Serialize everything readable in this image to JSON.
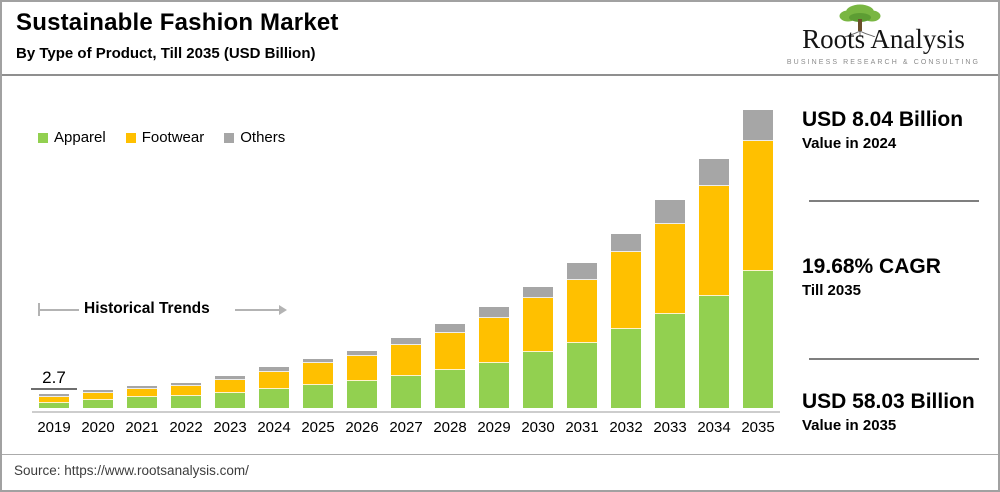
{
  "header": {
    "title": "Sustainable Fashion Market",
    "subtitle": "By Type of Product, Till 2035 (USD Billion)"
  },
  "logo": {
    "name": "Roots Analysis",
    "tagline": "BUSINESS RESEARCH & CONSULTING"
  },
  "legend": [
    {
      "label": "Apparel",
      "color": "#92d050"
    },
    {
      "label": "Footwear",
      "color": "#ffc000"
    },
    {
      "label": "Others",
      "color": "#a6a6a6"
    }
  ],
  "annotation": {
    "label": "Historical Trends"
  },
  "stats": [
    {
      "value": "USD 8.04 Billion",
      "caption": "Value in 2024"
    },
    {
      "value": "19.68% CAGR",
      "caption": "Till 2035"
    },
    {
      "value": "USD 58.03 Billion",
      "caption": "Value in 2035"
    }
  ],
  "source": "Source: https://www.rootsanalysis.com/",
  "chart_data": {
    "type": "bar",
    "stacked": true,
    "title": "Sustainable Fashion Market, By Type of Product, Till 2035 (USD Billion)",
    "categories": [
      "2019",
      "2020",
      "2021",
      "2022",
      "2023",
      "2024",
      "2025",
      "2026",
      "2027",
      "2028",
      "2029",
      "2030",
      "2031",
      "2032",
      "2033",
      "2034",
      "2035"
    ],
    "series": [
      {
        "name": "Apparel",
        "color": "#92d050",
        "values": [
          0.9,
          1.6,
          2.1,
          2.4,
          3.0,
          3.7,
          4.4,
          5.2,
          6.2,
          7.4,
          8.7,
          10.9,
          12.6,
          15.4,
          18.3,
          21.9,
          26.6
        ]
      },
      {
        "name": "Footwear",
        "color": "#ffc000",
        "values": [
          1.3,
          1.4,
          1.6,
          1.9,
          2.4,
          3.3,
          4.3,
          4.9,
          6.0,
          7.2,
          8.9,
          10.5,
          12.4,
          14.9,
          17.5,
          21.4,
          25.4
        ]
      },
      {
        "name": "Others",
        "color": "#a6a6a6",
        "values": [
          0.5,
          0.5,
          0.5,
          0.6,
          0.8,
          1.04,
          0.9,
          1.0,
          1.5,
          1.8,
          2.1,
          2.2,
          3.3,
          3.5,
          4.7,
          5.2,
          6.03
        ]
      }
    ],
    "totals_key_years": {
      "2019": 2.7,
      "2024": 8.04,
      "2035": 58.03
    },
    "value_label": {
      "index": 0,
      "category": "2019",
      "text": "2.7"
    },
    "ylabel": "USD Billion",
    "ylim": [
      0,
      60
    ],
    "grid": false,
    "y_axis_shown": false,
    "legend_position": "top-left"
  }
}
